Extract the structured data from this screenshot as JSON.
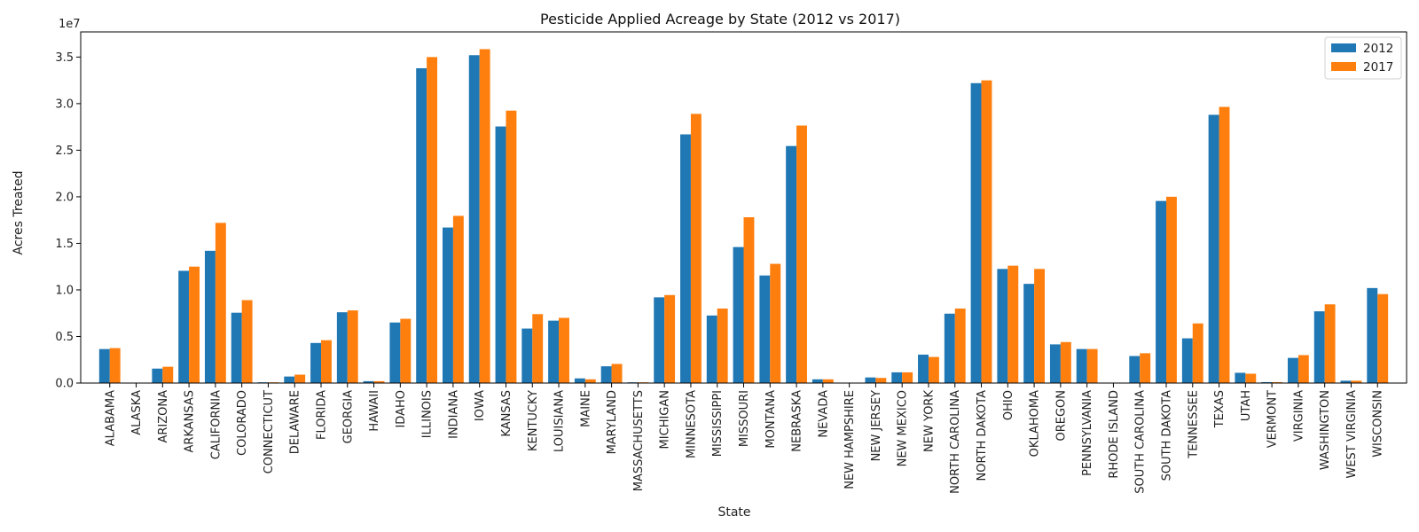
{
  "chart_data": {
    "type": "bar",
    "title": "Pesticide Applied Acreage by State (2012 vs 2017)",
    "xlabel": "State",
    "ylabel": "Acres Treated",
    "y_multiplier_label": "1e7",
    "ylim": [
      0,
      37700000
    ],
    "yticks": [
      0,
      5000000,
      10000000,
      15000000,
      20000000,
      25000000,
      30000000,
      35000000
    ],
    "ytick_labels": [
      "0.0",
      "0.5",
      "1.0",
      "1.5",
      "2.0",
      "2.5",
      "3.0",
      "3.5"
    ],
    "grid": false,
    "legend_position": "top-right",
    "categories": [
      "ALABAMA",
      "ALASKA",
      "ARIZONA",
      "ARKANSAS",
      "CALIFORNIA",
      "COLORADO",
      "CONNECTICUT",
      "DELAWARE",
      "FLORIDA",
      "GEORGIA",
      "HAWAII",
      "IDAHO",
      "ILLINOIS",
      "INDIANA",
      "IOWA",
      "KANSAS",
      "KENTUCKY",
      "LOUISIANA",
      "MAINE",
      "MARYLAND",
      "MASSACHUSETTS",
      "MICHIGAN",
      "MINNESOTA",
      "MISSISSIPPI",
      "MISSOURI",
      "MONTANA",
      "NEBRASKA",
      "NEVADA",
      "NEW HAMPSHIRE",
      "NEW JERSEY",
      "NEW MEXICO",
      "NEW YORK",
      "NORTH CAROLINA",
      "NORTH DAKOTA",
      "OHIO",
      "OKLAHOMA",
      "OREGON",
      "PENNSYLVANIA",
      "RHODE ISLAND",
      "SOUTH CAROLINA",
      "SOUTH DAKOTA",
      "TENNESSEE",
      "TEXAS",
      "UTAH",
      "VERMONT",
      "VIRGINIA",
      "WASHINGTON",
      "WEST VIRGINIA",
      "WISCONSIN"
    ],
    "series": [
      {
        "name": "2012",
        "color": "#1f77b4",
        "values": [
          3650000,
          10000,
          1550000,
          12050000,
          14200000,
          7550000,
          80000,
          700000,
          4300000,
          7600000,
          200000,
          6500000,
          33800000,
          16700000,
          35200000,
          27550000,
          5850000,
          6700000,
          500000,
          1800000,
          80000,
          9200000,
          26700000,
          7250000,
          14600000,
          11550000,
          25450000,
          400000,
          30000,
          600000,
          1150000,
          3050000,
          7450000,
          32200000,
          12250000,
          10650000,
          4150000,
          3650000,
          10000,
          2900000,
          19550000,
          4800000,
          28800000,
          1100000,
          100000,
          2700000,
          7700000,
          250000,
          10200000
        ]
      },
      {
        "name": "2017",
        "color": "#ff7f0e",
        "values": [
          3750000,
          10000,
          1750000,
          12500000,
          17200000,
          8900000,
          80000,
          900000,
          4600000,
          7800000,
          200000,
          6900000,
          35000000,
          17950000,
          35850000,
          29250000,
          7400000,
          7000000,
          400000,
          2050000,
          80000,
          9450000,
          28900000,
          8000000,
          17800000,
          12800000,
          27650000,
          400000,
          30000,
          550000,
          1150000,
          2800000,
          8000000,
          32500000,
          12600000,
          12250000,
          4400000,
          3650000,
          10000,
          3200000,
          20000000,
          6400000,
          29650000,
          1000000,
          100000,
          3000000,
          8450000,
          250000,
          9550000
        ]
      }
    ]
  }
}
